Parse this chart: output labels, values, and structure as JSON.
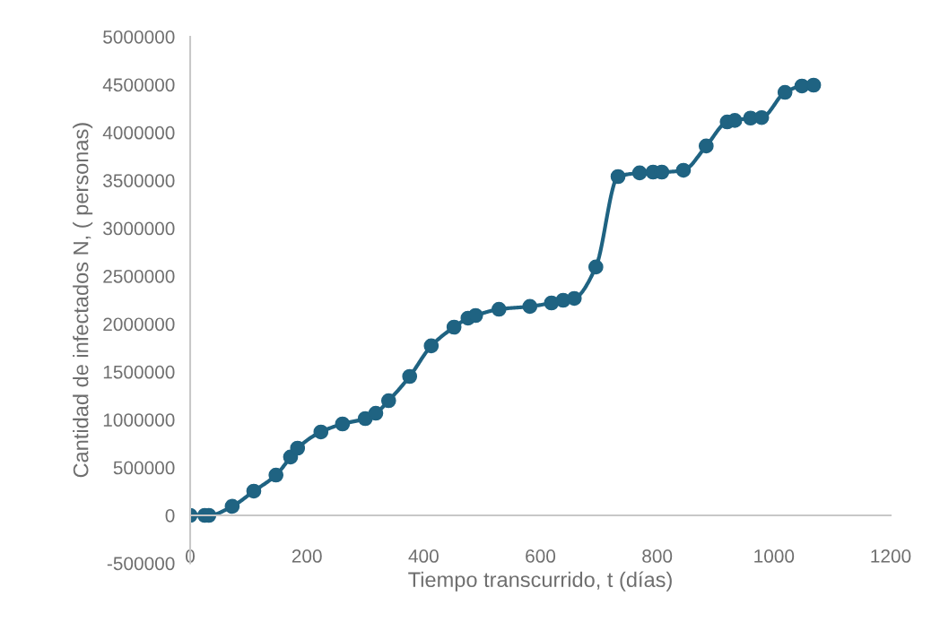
{
  "chart_data": {
    "type": "line",
    "xlabel": "Tiempo transcurrido, t (días)",
    "ylabel": "Cantidad de infectados N, ( personas)",
    "x": [
      0,
      25,
      32,
      72,
      109,
      147,
      172,
      184,
      224,
      261,
      300,
      318,
      340,
      376,
      413,
      452,
      476,
      489,
      529,
      582,
      619,
      639,
      658,
      695,
      733,
      770,
      793,
      808,
      845,
      884,
      920,
      933,
      960,
      979,
      1019,
      1048,
      1068
    ],
    "series": [
      {
        "color": "#1f6382",
        "values": [
          0,
          0,
          0,
          94000,
          253000,
          421000,
          609000,
          702000,
          871000,
          955000,
          1011000,
          1067000,
          1198000,
          1451000,
          1770000,
          1966000,
          2060000,
          2088000,
          2153000,
          2182000,
          2219000,
          2247000,
          2266000,
          2594000,
          3539000,
          3577000,
          3586000,
          3586000,
          3605000,
          3858000,
          4110000,
          4125000,
          4150000,
          4155000,
          4419000,
          4485000,
          4494000
        ]
      }
    ],
    "xlim": [
      0,
      1200
    ],
    "xticks": [
      0,
      200,
      400,
      600,
      800,
      1000,
      1200
    ],
    "ylim": [
      -500000,
      5000000
    ],
    "yticks": [
      -500000,
      0,
      500000,
      1000000,
      1500000,
      2000000,
      2500000,
      3000000,
      3500000,
      4000000,
      4500000,
      5000000
    ],
    "grid": false,
    "legend": false,
    "marker": "circle",
    "line_style": "solid"
  }
}
